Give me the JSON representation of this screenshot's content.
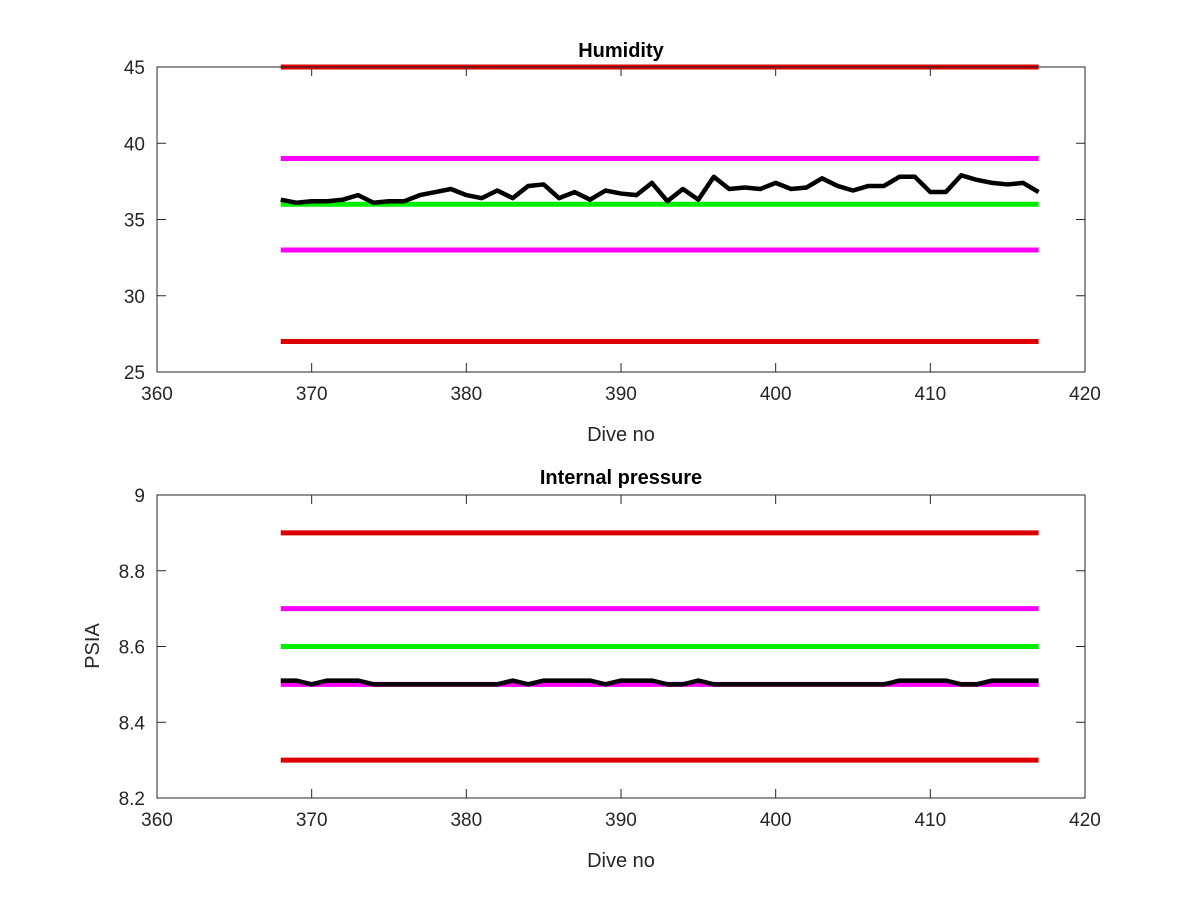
{
  "chart_data": [
    {
      "type": "line",
      "title": "Humidity",
      "xlabel": "Dive no",
      "ylabel": "",
      "xlim": [
        360,
        420
      ],
      "ylim": [
        25,
        45
      ],
      "xticks": [
        360,
        370,
        380,
        390,
        400,
        410,
        420
      ],
      "yticks": [
        25,
        30,
        35,
        40,
        45
      ],
      "grid": false,
      "x": [
        368,
        369,
        370,
        371,
        372,
        373,
        374,
        375,
        376,
        377,
        378,
        379,
        380,
        381,
        382,
        383,
        384,
        385,
        386,
        387,
        388,
        389,
        390,
        391,
        392,
        393,
        394,
        395,
        396,
        397,
        398,
        399,
        400,
        401,
        402,
        403,
        404,
        405,
        406,
        407,
        408,
        409,
        410,
        411,
        412,
        413,
        414,
        415,
        416,
        417
      ],
      "series": [
        {
          "color": "#000000",
          "values": [
            36.3,
            36.1,
            36.2,
            36.2,
            36.3,
            36.6,
            36.1,
            36.2,
            36.2,
            36.6,
            36.8,
            37.0,
            36.6,
            36.4,
            36.9,
            36.4,
            37.2,
            37.3,
            36.4,
            36.8,
            36.3,
            36.9,
            36.7,
            36.6,
            37.4,
            36.2,
            37.0,
            36.3,
            37.8,
            37.0,
            37.1,
            37.0,
            37.4,
            37.0,
            37.1,
            37.7,
            37.2,
            36.9,
            37.2,
            37.2,
            37.8,
            37.8,
            36.8,
            36.8,
            37.9,
            37.6,
            37.4,
            37.3,
            37.4,
            36.8
          ]
        },
        {
          "color": "#dd0000",
          "values": [
            45,
            45,
            45,
            45,
            45,
            45,
            45,
            45,
            45,
            45,
            45,
            45,
            45,
            45,
            45,
            45,
            45,
            45,
            45,
            45,
            45,
            45,
            45,
            45,
            45,
            45,
            45,
            45,
            45,
            45,
            45,
            45,
            45,
            45,
            45,
            45,
            45,
            45,
            45,
            45,
            45,
            45,
            45,
            45,
            45,
            45,
            45,
            45,
            45,
            45
          ]
        },
        {
          "color": "#ff00ff",
          "values": [
            39,
            39,
            39,
            39,
            39,
            39,
            39,
            39,
            39,
            39,
            39,
            39,
            39,
            39,
            39,
            39,
            39,
            39,
            39,
            39,
            39,
            39,
            39,
            39,
            39,
            39,
            39,
            39,
            39,
            39,
            39,
            39,
            39,
            39,
            39,
            39,
            39,
            39,
            39,
            39,
            39,
            39,
            39,
            39,
            39,
            39,
            39,
            39,
            39,
            39
          ]
        },
        {
          "color": "#00ee00",
          "values": [
            36,
            36,
            36,
            36,
            36,
            36,
            36,
            36,
            36,
            36,
            36,
            36,
            36,
            36,
            36,
            36,
            36,
            36,
            36,
            36,
            36,
            36,
            36,
            36,
            36,
            36,
            36,
            36,
            36,
            36,
            36,
            36,
            36,
            36,
            36,
            36,
            36,
            36,
            36,
            36,
            36,
            36,
            36,
            36,
            36,
            36,
            36,
            36,
            36,
            36
          ]
        },
        {
          "color": "#ff00ff",
          "values": [
            33,
            33,
            33,
            33,
            33,
            33,
            33,
            33,
            33,
            33,
            33,
            33,
            33,
            33,
            33,
            33,
            33,
            33,
            33,
            33,
            33,
            33,
            33,
            33,
            33,
            33,
            33,
            33,
            33,
            33,
            33,
            33,
            33,
            33,
            33,
            33,
            33,
            33,
            33,
            33,
            33,
            33,
            33,
            33,
            33,
            33,
            33,
            33,
            33,
            33
          ]
        },
        {
          "color": "#dd0000",
          "values": [
            27,
            27,
            27,
            27,
            27,
            27,
            27,
            27,
            27,
            27,
            27,
            27,
            27,
            27,
            27,
            27,
            27,
            27,
            27,
            27,
            27,
            27,
            27,
            27,
            27,
            27,
            27,
            27,
            27,
            27,
            27,
            27,
            27,
            27,
            27,
            27,
            27,
            27,
            27,
            27,
            27,
            27,
            27,
            27,
            27,
            27,
            27,
            27,
            27,
            27
          ]
        }
      ]
    },
    {
      "type": "line",
      "title": "Internal pressure",
      "xlabel": "Dive no",
      "ylabel": "PSIA",
      "xlim": [
        360,
        420
      ],
      "ylim": [
        8.2,
        9
      ],
      "xticks": [
        360,
        370,
        380,
        390,
        400,
        410,
        420
      ],
      "yticks": [
        8.2,
        8.4,
        8.6,
        8.8,
        9
      ],
      "grid": false,
      "x": [
        368,
        369,
        370,
        371,
        372,
        373,
        374,
        375,
        376,
        377,
        378,
        379,
        380,
        381,
        382,
        383,
        384,
        385,
        386,
        387,
        388,
        389,
        390,
        391,
        392,
        393,
        394,
        395,
        396,
        397,
        398,
        399,
        400,
        401,
        402,
        403,
        404,
        405,
        406,
        407,
        408,
        409,
        410,
        411,
        412,
        413,
        414,
        415,
        416,
        417
      ],
      "series": [
        {
          "color": "#000000",
          "values": [
            8.51,
            8.51,
            8.5,
            8.51,
            8.51,
            8.51,
            8.5,
            8.5,
            8.5,
            8.5,
            8.5,
            8.5,
            8.5,
            8.5,
            8.5,
            8.51,
            8.5,
            8.51,
            8.51,
            8.51,
            8.51,
            8.5,
            8.51,
            8.51,
            8.51,
            8.5,
            8.5,
            8.51,
            8.5,
            8.5,
            8.5,
            8.5,
            8.5,
            8.5,
            8.5,
            8.5,
            8.5,
            8.5,
            8.5,
            8.5,
            8.51,
            8.51,
            8.51,
            8.51,
            8.5,
            8.5,
            8.51,
            8.51,
            8.51,
            8.51
          ]
        },
        {
          "color": "#dd0000",
          "values": [
            8.9,
            8.9,
            8.9,
            8.9,
            8.9,
            8.9,
            8.9,
            8.9,
            8.9,
            8.9,
            8.9,
            8.9,
            8.9,
            8.9,
            8.9,
            8.9,
            8.9,
            8.9,
            8.9,
            8.9,
            8.9,
            8.9,
            8.9,
            8.9,
            8.9,
            8.9,
            8.9,
            8.9,
            8.9,
            8.9,
            8.9,
            8.9,
            8.9,
            8.9,
            8.9,
            8.9,
            8.9,
            8.9,
            8.9,
            8.9,
            8.9,
            8.9,
            8.9,
            8.9,
            8.9,
            8.9,
            8.9,
            8.9,
            8.9,
            8.9
          ]
        },
        {
          "color": "#ff00ff",
          "values": [
            8.7,
            8.7,
            8.7,
            8.7,
            8.7,
            8.7,
            8.7,
            8.7,
            8.7,
            8.7,
            8.7,
            8.7,
            8.7,
            8.7,
            8.7,
            8.7,
            8.7,
            8.7,
            8.7,
            8.7,
            8.7,
            8.7,
            8.7,
            8.7,
            8.7,
            8.7,
            8.7,
            8.7,
            8.7,
            8.7,
            8.7,
            8.7,
            8.7,
            8.7,
            8.7,
            8.7,
            8.7,
            8.7,
            8.7,
            8.7,
            8.7,
            8.7,
            8.7,
            8.7,
            8.7,
            8.7,
            8.7,
            8.7,
            8.7,
            8.7
          ]
        },
        {
          "color": "#00ee00",
          "values": [
            8.6,
            8.6,
            8.6,
            8.6,
            8.6,
            8.6,
            8.6,
            8.6,
            8.6,
            8.6,
            8.6,
            8.6,
            8.6,
            8.6,
            8.6,
            8.6,
            8.6,
            8.6,
            8.6,
            8.6,
            8.6,
            8.6,
            8.6,
            8.6,
            8.6,
            8.6,
            8.6,
            8.6,
            8.6,
            8.6,
            8.6,
            8.6,
            8.6,
            8.6,
            8.6,
            8.6,
            8.6,
            8.6,
            8.6,
            8.6,
            8.6,
            8.6,
            8.6,
            8.6,
            8.6,
            8.6,
            8.6,
            8.6,
            8.6,
            8.6
          ]
        },
        {
          "color": "#ff00ff",
          "values": [
            8.5,
            8.5,
            8.5,
            8.5,
            8.5,
            8.5,
            8.5,
            8.5,
            8.5,
            8.5,
            8.5,
            8.5,
            8.5,
            8.5,
            8.5,
            8.5,
            8.5,
            8.5,
            8.5,
            8.5,
            8.5,
            8.5,
            8.5,
            8.5,
            8.5,
            8.5,
            8.5,
            8.5,
            8.5,
            8.5,
            8.5,
            8.5,
            8.5,
            8.5,
            8.5,
            8.5,
            8.5,
            8.5,
            8.5,
            8.5,
            8.5,
            8.5,
            8.5,
            8.5,
            8.5,
            8.5,
            8.5,
            8.5,
            8.5,
            8.5
          ]
        },
        {
          "color": "#dd0000",
          "values": [
            8.3,
            8.3,
            8.3,
            8.3,
            8.3,
            8.3,
            8.3,
            8.3,
            8.3,
            8.3,
            8.3,
            8.3,
            8.3,
            8.3,
            8.3,
            8.3,
            8.3,
            8.3,
            8.3,
            8.3,
            8.3,
            8.3,
            8.3,
            8.3,
            8.3,
            8.3,
            8.3,
            8.3,
            8.3,
            8.3,
            8.3,
            8.3,
            8.3,
            8.3,
            8.3,
            8.3,
            8.3,
            8.3,
            8.3,
            8.3,
            8.3,
            8.3,
            8.3,
            8.3,
            8.3,
            8.3,
            8.3,
            8.3,
            8.3,
            8.3
          ]
        }
      ]
    }
  ]
}
